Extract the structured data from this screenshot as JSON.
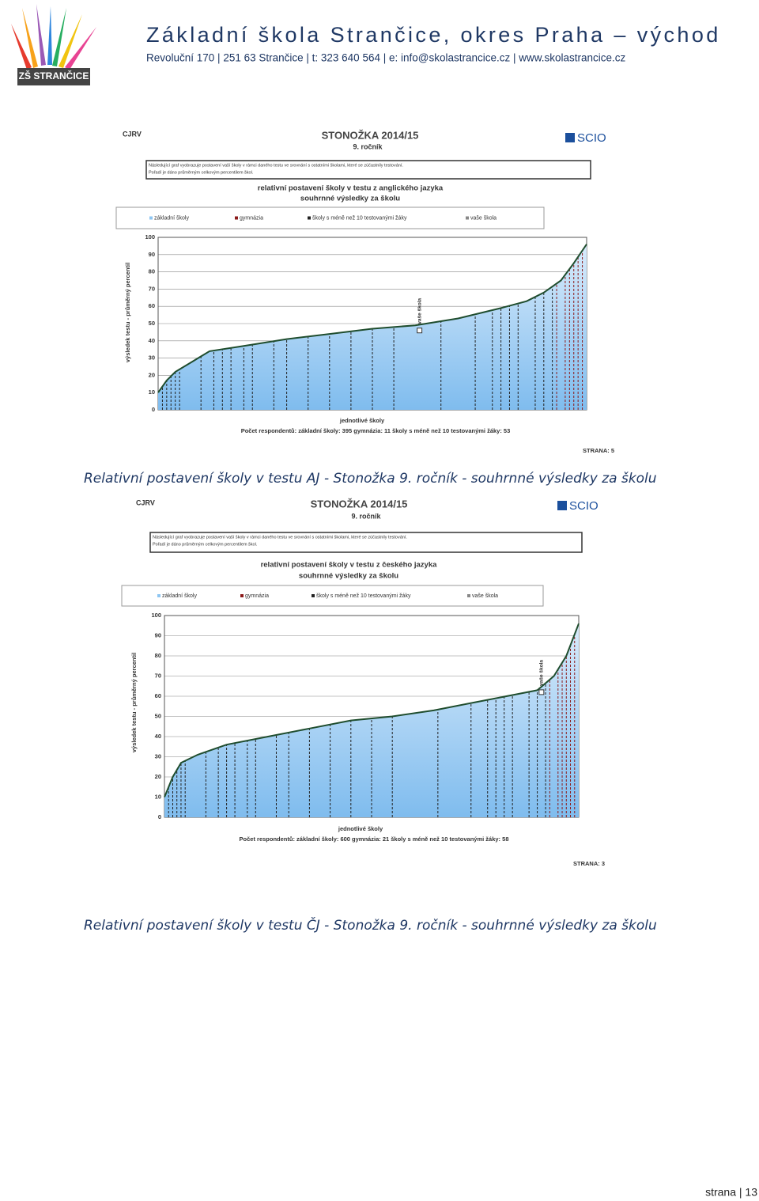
{
  "header": {
    "logo_text": "ZŠ STRANČICE",
    "title": "Základní škola Strančice, okres Praha – východ",
    "address": "Revoluční 170 | 251 63 Strančice | t: 323 640 564 | e: info@skolastrancice.cz | www.skolastrancice.cz"
  },
  "figures": [
    {
      "corner": "CJRV",
      "title": "STONOŽKA 2014/15",
      "subtitle": "9. ročník",
      "logo": "SCIO",
      "note_lines": [
        "Následující graf vyobrazuje postavení vaší školy v rámci daného testu ve srovnání s ostatními školami, které se zúčastnily testování.",
        "Pořadí je dáno průměrným celkovým percentilem škol."
      ],
      "chart_title": [
        "relativní postavení školy v testu z anglického jazyka",
        "souhrnné výsledky za školu"
      ],
      "legend": [
        "základní školy",
        "gymnázia",
        "školy s méně než 10 testovanými žáky",
        "vaše škola"
      ],
      "ylabel": "výsledek testu - průměrný percentil",
      "xlabel": "jednotlivé školy",
      "respondents": "Počet respondentů:  základní školy: 395    gymnázia: 11    školy s méně než 10 testovanými žáky: 53",
      "page_label": "STRANA: 5",
      "school_label": "vaše škola",
      "ylim": [
        0,
        100
      ],
      "yticks": [
        0,
        10,
        20,
        30,
        40,
        50,
        60,
        70,
        80,
        90,
        100
      ],
      "xlim": [
        0,
        100
      ],
      "x": [
        0,
        2,
        4,
        8,
        12,
        20,
        30,
        40,
        50,
        60,
        70,
        80,
        86,
        90,
        94,
        97,
        100
      ],
      "values": [
        10,
        17,
        22,
        28,
        34,
        37,
        41,
        44,
        47,
        49,
        53,
        59,
        63,
        68,
        75,
        85,
        96
      ],
      "school_x": 61,
      "school_value": 46,
      "caption": "Relativní postavení školy v testu AJ -   Stonožka 9. ročník  - souhrnné výsledky za školu"
    },
    {
      "corner": "CJRV",
      "title": "STONOŽKA 2014/15",
      "subtitle": "9. ročník",
      "logo": "SCIO",
      "note_lines": [
        "Následující graf vyobrazuje postavení vaší školy v rámci daného testu ve srovnání s ostatními školami, které se zúčastnily testování.",
        "Pořadí je dáno průměrným celkovým percentilem škol."
      ],
      "chart_title": [
        "relativní postavení školy v testu z českého jazyka",
        "souhrnné výsledky za školu"
      ],
      "legend": [
        "základní školy",
        "gymnázia",
        "školy s méně než 10 testovanými žáky",
        "vaše škola"
      ],
      "ylabel": "výsledek testu - průměrný percentil",
      "xlabel": "jednotlivé školy",
      "respondents": "Počet respondentů:  základní školy: 600    gymnázia: 21    školy s méně než 10 testovanými žáky: 58",
      "page_label": "STRANA: 3",
      "school_label": "vaše škola",
      "ylim": [
        0,
        100
      ],
      "yticks": [
        0,
        10,
        20,
        30,
        40,
        50,
        60,
        70,
        80,
        90,
        100
      ],
      "xlim": [
        0,
        100
      ],
      "x": [
        0,
        2,
        4,
        8,
        15,
        25,
        35,
        45,
        55,
        65,
        75,
        85,
        90,
        94,
        97,
        100
      ],
      "values": [
        10,
        20,
        27,
        31,
        36,
        40,
        44,
        48,
        50,
        53,
        57,
        61,
        63,
        70,
        80,
        96
      ],
      "school_x": 91,
      "school_value": 62,
      "caption": "Relativní postavení školy v testu ČJ -   Stonožka 9. ročník  - souhrnné výsledky za školu"
    }
  ],
  "footer": "strana | 13"
}
